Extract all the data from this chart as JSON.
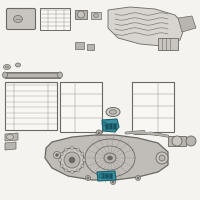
{
  "bg_color": "#f5f3ef",
  "lc": "#9a9890",
  "dc": "#6a6860",
  "mc": "#7a7870",
  "fc": "#c8c5c0",
  "fc2": "#b8b5b0",
  "hc": "#3a8fa0",
  "hc2": "#2e7d8e",
  "hc_dark": "#1a5f6a",
  "white": "#f8f7f4"
}
